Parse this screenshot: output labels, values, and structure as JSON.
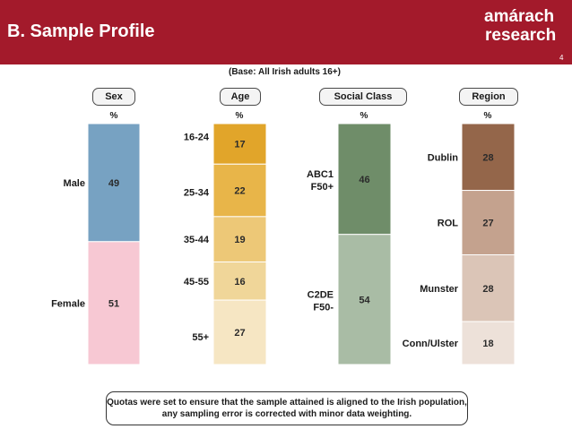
{
  "header": {
    "title": "B. Sample Profile",
    "logo_line1": "amárach",
    "logo_line2": "research",
    "page_number": "4",
    "background_color": "#a31a2b"
  },
  "base_note": "(Base: All Irish adults 16+)",
  "footnote": "Quotas were set to ensure that the sample attained is aligned to the Irish population, any sampling error is corrected with minor data weighting.",
  "chart_data": {
    "type": "bar",
    "stacked": true,
    "unit": "%",
    "ylim": [
      0,
      100
    ],
    "groups": [
      {
        "key": "sex",
        "title": "Sex",
        "unit_label": "%",
        "segments": [
          {
            "label": "Male",
            "value": 49,
            "display": "49",
            "color": "#77a2c2"
          },
          {
            "label": "Female",
            "value": 51,
            "display": "51",
            "color": "#f7c8d3"
          }
        ]
      },
      {
        "key": "age",
        "title": "Age",
        "unit_label": "%",
        "segments": [
          {
            "label": "16-24",
            "value": 17,
            "display": "17",
            "color": "#e1a52a"
          },
          {
            "label": "25-34",
            "value": 22,
            "display": "22",
            "color": "#e8b549"
          },
          {
            "label": "35-44",
            "value": 19,
            "display": "19",
            "color": "#edc877"
          },
          {
            "label": "45-55",
            "value": 16,
            "display": "16",
            "color": "#f0d699"
          },
          {
            "label": "55+",
            "value": 27,
            "display": "27",
            "color": "#f6e6c3"
          }
        ]
      },
      {
        "key": "social_class",
        "title": "Social Class",
        "unit_label": "%",
        "segments": [
          {
            "label": "ABC1 F50+",
            "lines": [
              "ABC1",
              "F50+"
            ],
            "value": 46,
            "display": "46",
            "color": "#6f8d69"
          },
          {
            "label": "C2DE F50-",
            "lines": [
              "C2DE",
              "F50-"
            ],
            "value": 54,
            "display": "54",
            "color": "#a9bca5"
          }
        ]
      },
      {
        "key": "region",
        "title": "Region",
        "unit_label": "%",
        "segments": [
          {
            "label": "Dublin",
            "value": 28,
            "display": "28",
            "color": "#94664a"
          },
          {
            "label": "ROL",
            "value": 27,
            "display": "27",
            "color": "#c4a28e"
          },
          {
            "label": "Munster",
            "value": 28,
            "display": "28",
            "color": "#dbc5b7"
          },
          {
            "label": "Conn/Ulster",
            "value": 18,
            "display": "18",
            "color": "#ede1d9"
          }
        ]
      }
    ]
  }
}
